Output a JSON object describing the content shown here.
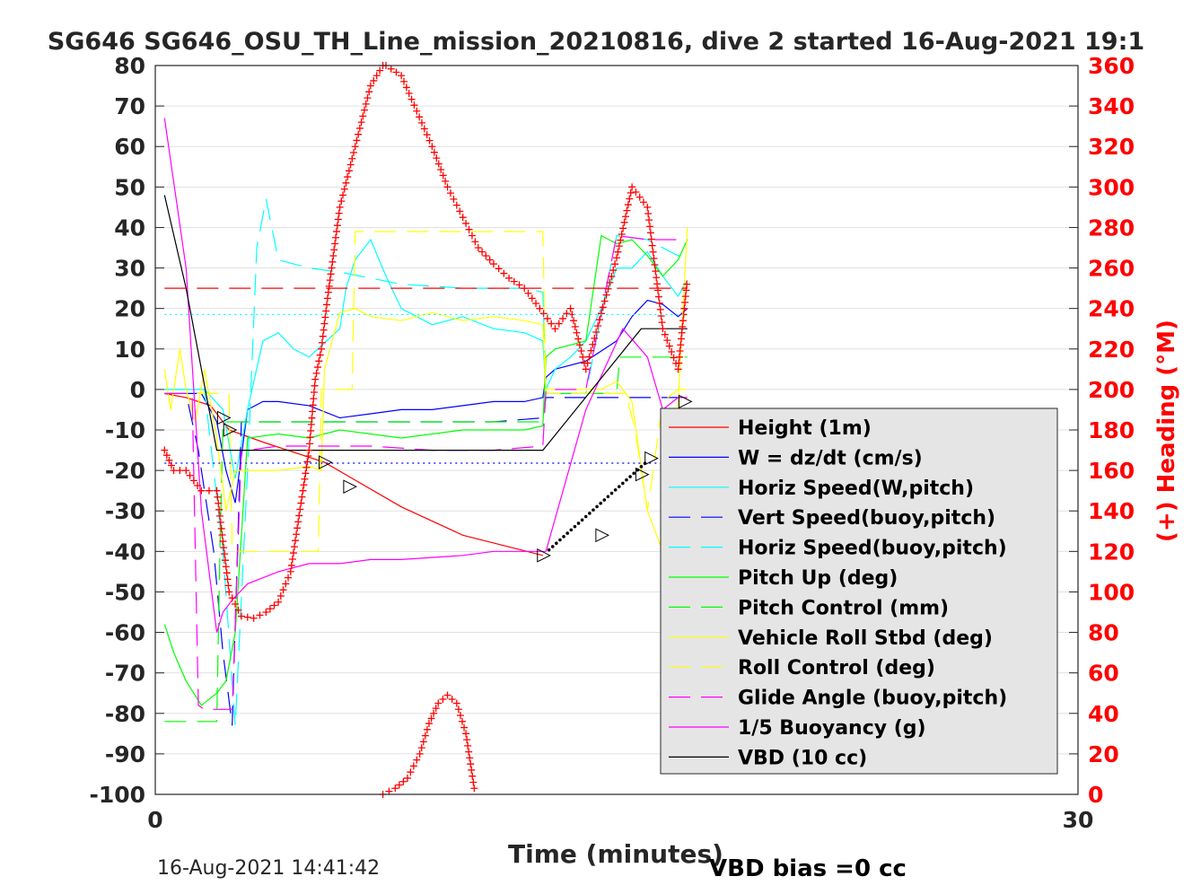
{
  "chart_data": {
    "type": "line",
    "title": "SG646 SG646_OSU_TH_Line_mission_20210816, dive 2 started 16-Aug-2021 19:1",
    "xlabel": "Time (minutes)",
    "ylabel_right": "(+) Heading (°M)",
    "xlim": [
      0,
      30
    ],
    "ylim": [
      -100,
      80
    ],
    "ylim_right": [
      0,
      360
    ],
    "x_ticks": [
      "0",
      "30"
    ],
    "y_ticks": [
      "80",
      "70",
      "60",
      "50",
      "40",
      "30",
      "20",
      "10",
      "0",
      "-10",
      "-20",
      "-30",
      "-40",
      "-50",
      "-60",
      "-70",
      "-80",
      "-90",
      "-100"
    ],
    "y_ticks_right": [
      "360",
      "340",
      "320",
      "300",
      "280",
      "260",
      "240",
      "220",
      "200",
      "180",
      "160",
      "140",
      "120",
      "100",
      "80",
      "60",
      "40",
      "20",
      "0"
    ],
    "grid": true,
    "legend_position": "lower-right",
    "series": [
      {
        "name": "Height (1m)",
        "color": "#ff0000",
        "style": "solid",
        "x": [
          0.3,
          1.0,
          1.8,
          2.4,
          3.5,
          5.5,
          8.0,
          10.0,
          12.6
        ],
        "y": [
          -1,
          -2,
          -4,
          -10,
          -13,
          -18,
          -29,
          -36,
          -41
        ]
      },
      {
        "name": "W = dz/dt (cm/s)",
        "color": "#0000ff",
        "style": "solid",
        "x": [
          0.3,
          1.0,
          1.5,
          2.0,
          2.3,
          2.6,
          3.0,
          3.5,
          4.0,
          5.0,
          6.0,
          7.0,
          8.0,
          9.0,
          10.0,
          11.0,
          12.0,
          12.6,
          12.7,
          13.0,
          14.0,
          15.0,
          15.5,
          16.0,
          16.5,
          17.0,
          17.3
        ],
        "y": [
          -1,
          -1,
          -1,
          -8,
          -20,
          -28,
          -5,
          -3,
          -3,
          -4,
          -7,
          -6,
          -5,
          -5,
          -4,
          -3,
          -3,
          -2,
          3,
          5,
          7,
          12,
          18,
          22,
          21,
          18,
          20
        ]
      },
      {
        "name": "Horiz Speed(W,pitch)",
        "color": "#00ffff",
        "style": "solid",
        "x": [
          0.3,
          1.0,
          1.6,
          2.2,
          2.6,
          3.0,
          3.5,
          4.0,
          4.5,
          5.0,
          6.0,
          6.2,
          6.5,
          7.0,
          7.5,
          8.0,
          9.0,
          10.0,
          11.0,
          12.0,
          12.6,
          12.7,
          13.0,
          13.5,
          14.0,
          14.5,
          15.0,
          15.5,
          16.0,
          16.5,
          17.0,
          17.3
        ],
        "y": [
          0,
          0,
          0,
          -5,
          -22,
          -5,
          12,
          14,
          10,
          8,
          15,
          25,
          32,
          37,
          28,
          20,
          16,
          18,
          15,
          14,
          12,
          0,
          5,
          8,
          12,
          20,
          30,
          30,
          34,
          28,
          23,
          27
        ]
      },
      {
        "name": "Vert Speed(buoy,pitch)",
        "color": "#0000ff",
        "style": "dash",
        "x": [
          0.3,
          1.0,
          1.4,
          1.9,
          2.2,
          2.5,
          2.8,
          3.5,
          5.0,
          7.0,
          9.0,
          11.0,
          12.6,
          12.7,
          14.0,
          16.0,
          17.3
        ],
        "y": [
          -1,
          -1,
          -15,
          -40,
          -65,
          -83,
          -8,
          -8,
          -8,
          -8,
          -8,
          -8,
          -7,
          -2,
          -2,
          -2,
          -2
        ]
      },
      {
        "name": "Horiz Speed(buoy,pitch)",
        "color": "#00ffff",
        "style": "dash",
        "x": [
          0.3,
          1.0,
          1.6,
          2.2,
          2.6,
          3.0,
          3.3,
          3.6,
          4.0,
          5.0,
          6.0,
          8.0,
          10.0,
          12.0,
          12.6,
          12.7,
          14.0,
          15.0,
          16.0,
          17.0,
          17.3
        ],
        "y": [
          0,
          0,
          0,
          -40,
          -83,
          -20,
          35,
          47,
          32,
          30,
          29,
          26,
          25,
          25,
          24,
          -1,
          -1,
          38,
          37,
          33,
          33
        ]
      },
      {
        "name": "Pitch Up (deg)",
        "color": "#00ff00",
        "style": "solid",
        "x": [
          0.3,
          0.6,
          1.0,
          1.5,
          2.0,
          2.3,
          2.6,
          3.0,
          4.0,
          5.0,
          6.0,
          7.0,
          8.0,
          10.0,
          12.0,
          12.6,
          12.7,
          13.0,
          14.0,
          14.5,
          15.0,
          15.5,
          16.0,
          16.5,
          17.0,
          17.3
        ],
        "y": [
          -58,
          -65,
          -72,
          -78,
          -75,
          -72,
          -60,
          -12,
          -11,
          -12,
          -10,
          -11,
          -12,
          -10,
          -10,
          -9,
          8,
          10,
          12,
          38,
          36,
          37,
          33,
          28,
          32,
          37
        ]
      },
      {
        "name": "Pitch Control (mm)",
        "color": "#00ff00",
        "style": "dash",
        "x": [
          0.3,
          1.2,
          2.0,
          2.1,
          2.2,
          2.5,
          3.0,
          5.0,
          8.0,
          10.0,
          12.6,
          12.7,
          14.0,
          15.0,
          15.1,
          16.0,
          17.3
        ],
        "y": [
          -82,
          -82,
          -82,
          -40,
          -8,
          -8,
          -8,
          -8,
          -8,
          -8,
          -8,
          -1,
          -1,
          -1,
          8,
          8,
          8
        ]
      },
      {
        "name": "Vehicle Roll Stbd (deg)",
        "color": "#ffff00",
        "style": "solid",
        "x": [
          0.3,
          0.5,
          0.8,
          1.0,
          1.3,
          1.6,
          2.0,
          2.3,
          2.6,
          3.0,
          4.0,
          5.0,
          5.4,
          5.5,
          6.0,
          6.5,
          7.0,
          8.0,
          9.0,
          10.0,
          11.0,
          12.0,
          12.6,
          12.7,
          13.5,
          14.5,
          15.0,
          15.5,
          16.0,
          16.5,
          17.0,
          17.3
        ],
        "y": [
          5,
          -5,
          10,
          0,
          -8,
          5,
          -12,
          -30,
          -20,
          -20,
          -20,
          -19,
          -20,
          5,
          19,
          20,
          18,
          17,
          19,
          17,
          18,
          17,
          16,
          0,
          0,
          0,
          2,
          -3,
          -30,
          -40,
          -3,
          40
        ]
      },
      {
        "name": "Roll Control (deg)",
        "color": "#ffff00",
        "style": "dash",
        "x": [
          0.3,
          1.2,
          2.0,
          2.4,
          2.5,
          5.3,
          5.4,
          6.4,
          6.5,
          12.5,
          12.6,
          12.7,
          15.0,
          15.3,
          15.6,
          16.0,
          16.5,
          17.0,
          17.3
        ],
        "y": [
          -1,
          -1,
          -1,
          -1,
          -40,
          -40,
          0,
          0,
          39,
          39,
          39,
          -1,
          -1,
          -1,
          -10,
          -30,
          -3,
          0,
          0
        ]
      },
      {
        "name": "Glide Angle (buoy,pitch)",
        "color": "#ff00ff",
        "style": "dash",
        "x": [
          0.3,
          1.0,
          1.2,
          1.4,
          1.6,
          2.0,
          2.2,
          2.5,
          2.8,
          3.0,
          4.0,
          5.0,
          7.0,
          9.0,
          11.0,
          12.6,
          12.7,
          14.0,
          15.0,
          16.0,
          17.0,
          17.3
        ],
        "y": [
          -1,
          -1,
          -1,
          -78,
          -79,
          -79,
          -79,
          -79,
          -15,
          -15,
          -14,
          -14,
          -14,
          -15,
          -15,
          -14,
          0,
          0,
          38,
          37,
          37,
          37
        ]
      },
      {
        "name": "1/5 Buoyancy (g)",
        "color": "#ff00ff",
        "style": "solid",
        "x": [
          0.3,
          1.0,
          1.5,
          2.0,
          2.2,
          2.5,
          3.0,
          4.0,
          5.0,
          6.0,
          7.0,
          8.0,
          10.0,
          11.0,
          12.0,
          12.7,
          14.0,
          15.2,
          16.0,
          16.5,
          17.0,
          17.3
        ],
        "y": [
          67,
          30,
          -30,
          -60,
          -55,
          -52,
          -48,
          -45,
          -43,
          -43,
          -42,
          -42,
          -41,
          -40,
          -40,
          -40,
          -5,
          15,
          8,
          -5,
          -2,
          -2
        ]
      },
      {
        "name": "VBD (10 cc)",
        "color": "#000000",
        "style": "solid",
        "x": [
          0.3,
          1.0,
          2.0,
          2.1,
          12.6,
          15.8,
          17.3
        ],
        "y": [
          48,
          25,
          -15,
          -15,
          -15,
          15,
          15
        ]
      },
      {
        "color": "#ff0000",
        "style": "marker-plus",
        "x": [
          0.3,
          0.6,
          1.0,
          1.5,
          2.0,
          2.4,
          2.8,
          3.2,
          3.6,
          4.0,
          4.4,
          4.8,
          5.0,
          5.2,
          5.4,
          5.6,
          6.0,
          6.5,
          7.0,
          7.4,
          7.5,
          8.0,
          9.0,
          9.5,
          10.0,
          10.5,
          11.0,
          11.5,
          12.0,
          12.5,
          13.0,
          13.5,
          14.0,
          15.0,
          15.5,
          16.0,
          16.5,
          17.0,
          17.3
        ],
        "y": [
          170,
          160,
          160,
          150,
          150,
          100,
          88,
          87,
          90,
          95,
          110,
          150,
          170,
          205,
          220,
          245,
          290,
          320,
          350,
          360,
          360,
          355,
          320,
          300,
          285,
          270,
          262,
          255,
          250,
          240,
          230,
          240,
          210,
          265,
          300,
          290,
          230,
          210,
          255
        ]
      },
      {
        "color": "#ff0000",
        "style": "marker-plus",
        "x": [
          7.4,
          7.8,
          8.2,
          8.6,
          8.9,
          9.2,
          9.5,
          9.8,
          10.1,
          10.4
        ],
        "y": [
          0,
          3,
          8,
          20,
          35,
          45,
          49,
          45,
          30,
          0
        ]
      },
      {
        "color": "#00ffff",
        "style": "dot",
        "x": [
          0.3,
          17.3
        ],
        "y": [
          18.5,
          18.5
        ]
      },
      {
        "color": "#0000ff",
        "style": "dot",
        "x": [
          0.3,
          17.3
        ],
        "y": [
          -18.2,
          -18.2
        ]
      },
      {
        "color": "#ff0000",
        "style": "dash",
        "x": [
          0.3,
          17.3
        ],
        "y": [
          25,
          25
        ]
      }
    ],
    "markers_triangles": [
      {
        "x": 2.2,
        "y": -7
      },
      {
        "x": 2.4,
        "y": -10
      },
      {
        "x": 5.5,
        "y": -18
      },
      {
        "x": 6.3,
        "y": -24
      },
      {
        "x": 12.6,
        "y": -41
      },
      {
        "x": 14.5,
        "y": -36
      },
      {
        "x": 15.8,
        "y": -21
      },
      {
        "x": 16.1,
        "y": -17
      },
      {
        "x": 17.2,
        "y": -3
      }
    ]
  },
  "footer": {
    "timestamp": "16-Aug-2021 14:41:42",
    "vbd_bias": "VBD bias =0 cc"
  }
}
